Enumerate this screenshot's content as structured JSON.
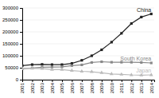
{
  "chart_data": {
    "type": "line",
    "x": [
      2001,
      2002,
      2003,
      2004,
      2005,
      2006,
      2007,
      2008,
      2009,
      2010,
      2011,
      2012,
      2013,
      2014
    ],
    "series": [
      {
        "name": "China",
        "color": "#222222",
        "marker": "square",
        "values": [
          59000,
          63000,
          64000,
          63000,
          63000,
          68000,
          81000,
          100000,
          125000,
          157000,
          194000,
          235000,
          262000,
          275000
        ]
      },
      {
        "name": "South Korea",
        "color": "#888888",
        "marker": "square",
        "values": [
          45000,
          49000,
          52000,
          53000,
          54000,
          59000,
          62000,
          72000,
          75000,
          73000,
          73000,
          73000,
          72000,
          70000
        ]
      },
      {
        "name": "Japan",
        "color": "#bbbbbb",
        "marker": "triangle",
        "values": [
          47000,
          47000,
          46000,
          42000,
          42000,
          38000,
          35000,
          33000,
          29000,
          24000,
          22000,
          20000,
          19000,
          20000
        ]
      }
    ],
    "xlim": [
      2001,
      2014.3
    ],
    "xticks": [
      2001,
      2002,
      2003,
      2004,
      2005,
      2006,
      2007,
      2008,
      2009,
      2010,
      2011,
      2012,
      2013,
      2014
    ],
    "ylim": [
      0,
      300000
    ],
    "yticks": [
      0,
      50000,
      100000,
      150000,
      200000,
      250000,
      300000
    ],
    "grid": true
  }
}
